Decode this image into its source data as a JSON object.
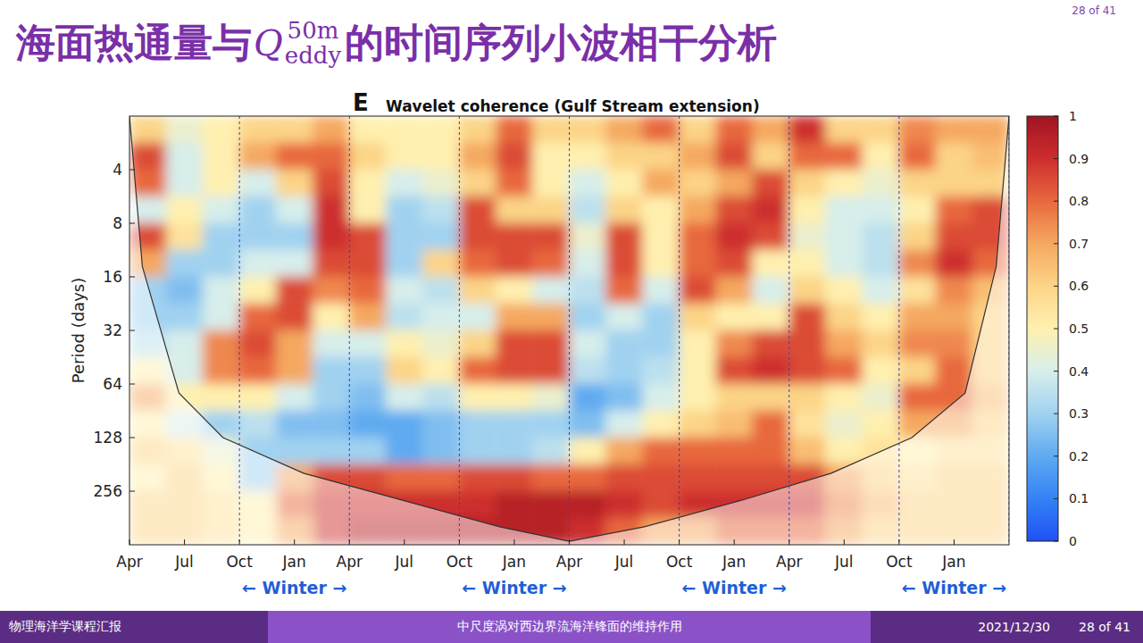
{
  "header": {
    "title_before": "海面热通量与",
    "symbol": "Q",
    "superscript": "50m",
    "subscript": "eddy",
    "title_after": "的时间序列小波相干分析",
    "page": "28 of 41"
  },
  "chart_data": {
    "type": "heatmap",
    "panel_label": "E",
    "title": "Wavelet coherence (Gulf Stream extension)",
    "y_label": "Period (days)",
    "log": "y",
    "xlim": [
      0,
      48
    ],
    "ylim": [
      2,
      512
    ],
    "xticks": [
      {
        "value": 0,
        "label": "Apr"
      },
      {
        "value": 3,
        "label": "Jul"
      },
      {
        "value": 6,
        "label": "Oct"
      },
      {
        "value": 9,
        "label": "Jan"
      },
      {
        "value": 12,
        "label": "Apr"
      },
      {
        "value": 15,
        "label": "Jul"
      },
      {
        "value": 18,
        "label": "Oct"
      },
      {
        "value": 21,
        "label": "Jan"
      },
      {
        "value": 24,
        "label": "Apr"
      },
      {
        "value": 27,
        "label": "Jul"
      },
      {
        "value": 30,
        "label": "Oct"
      },
      {
        "value": 33,
        "label": "Jan"
      },
      {
        "value": 36,
        "label": "Apr"
      },
      {
        "value": 39,
        "label": "Jul"
      },
      {
        "value": 42,
        "label": "Oct"
      },
      {
        "value": 45,
        "label": "Jan"
      }
    ],
    "yticks": [
      4,
      8,
      16,
      32,
      64,
      128,
      256
    ],
    "x_edges": [
      0,
      2,
      4,
      6,
      8,
      10,
      12,
      14,
      16,
      18,
      20,
      22,
      24,
      26,
      28,
      30,
      32,
      34,
      36,
      38,
      40,
      42,
      44,
      46,
      48
    ],
    "y_edges": [
      2,
      2.83,
      4,
      5.66,
      8,
      11.31,
      16,
      22.63,
      32,
      45.25,
      64,
      90.51,
      128,
      181.02,
      256,
      362.04,
      512
    ],
    "values": [
      [
        0.6,
        0.45,
        0.5,
        0.6,
        0.6,
        0.7,
        0.5,
        0.5,
        0.5,
        0.6,
        0.8,
        0.6,
        0.6,
        0.7,
        0.8,
        0.6,
        0.8,
        0.7,
        0.9,
        0.6,
        0.6,
        0.75,
        0.7,
        0.7
      ],
      [
        0.85,
        0.4,
        0.5,
        0.7,
        0.8,
        0.8,
        0.6,
        0.5,
        0.5,
        0.7,
        0.85,
        0.5,
        0.5,
        0.6,
        0.6,
        0.7,
        0.85,
        0.6,
        0.8,
        0.8,
        0.5,
        0.8,
        0.6,
        0.65
      ],
      [
        0.8,
        0.4,
        0.5,
        0.4,
        0.6,
        0.85,
        0.5,
        0.4,
        0.45,
        0.6,
        0.8,
        0.5,
        0.4,
        0.5,
        0.7,
        0.6,
        0.7,
        0.85,
        0.6,
        0.5,
        0.45,
        0.6,
        0.6,
        0.6
      ],
      [
        0.4,
        0.5,
        0.4,
        0.3,
        0.4,
        0.9,
        0.5,
        0.3,
        0.35,
        0.85,
        0.6,
        0.6,
        0.35,
        0.6,
        0.5,
        0.7,
        0.85,
        0.9,
        0.5,
        0.4,
        0.4,
        0.5,
        0.8,
        0.85
      ],
      [
        0.85,
        0.55,
        0.3,
        0.3,
        0.3,
        0.9,
        0.85,
        0.3,
        0.3,
        0.85,
        0.85,
        0.85,
        0.45,
        0.85,
        0.5,
        0.8,
        0.9,
        0.85,
        0.45,
        0.4,
        0.35,
        0.6,
        0.85,
        0.85
      ],
      [
        0.7,
        0.3,
        0.3,
        0.4,
        0.4,
        0.85,
        0.85,
        0.3,
        0.6,
        0.8,
        0.85,
        0.8,
        0.4,
        0.85,
        0.5,
        0.8,
        0.85,
        0.5,
        0.5,
        0.4,
        0.35,
        0.75,
        0.9,
        0.8
      ],
      [
        0.3,
        0.25,
        0.4,
        0.5,
        0.85,
        0.75,
        0.8,
        0.4,
        0.35,
        0.6,
        0.5,
        0.4,
        0.35,
        0.8,
        0.4,
        0.85,
        0.7,
        0.4,
        0.6,
        0.5,
        0.4,
        0.55,
        0.75,
        0.65
      ],
      [
        0.3,
        0.3,
        0.4,
        0.8,
        0.85,
        0.5,
        0.7,
        0.35,
        0.4,
        0.4,
        0.7,
        0.7,
        0.3,
        0.4,
        0.3,
        0.6,
        0.5,
        0.5,
        0.85,
        0.6,
        0.5,
        0.7,
        0.7,
        0.6
      ],
      [
        0.35,
        0.4,
        0.75,
        0.85,
        0.7,
        0.4,
        0.4,
        0.5,
        0.45,
        0.6,
        0.85,
        0.85,
        0.4,
        0.3,
        0.3,
        0.5,
        0.75,
        0.85,
        0.85,
        0.7,
        0.6,
        0.75,
        0.75,
        0.6
      ],
      [
        0.5,
        0.4,
        0.75,
        0.8,
        0.7,
        0.3,
        0.3,
        0.6,
        0.5,
        0.8,
        0.85,
        0.85,
        0.35,
        0.3,
        0.35,
        0.5,
        0.85,
        0.9,
        0.85,
        0.8,
        0.5,
        0.6,
        0.8,
        0.6
      ],
      [
        0.7,
        0.5,
        0.5,
        0.5,
        0.4,
        0.3,
        0.25,
        0.4,
        0.35,
        0.5,
        0.5,
        0.45,
        0.2,
        0.25,
        0.4,
        0.5,
        0.6,
        0.6,
        0.6,
        0.5,
        0.45,
        0.8,
        0.8,
        0.65
      ],
      [
        0.5,
        0.4,
        0.3,
        0.35,
        0.25,
        0.25,
        0.2,
        0.2,
        0.25,
        0.3,
        0.3,
        0.3,
        0.25,
        0.4,
        0.5,
        0.6,
        0.65,
        0.8,
        0.55,
        0.45,
        0.5,
        0.7,
        0.7,
        0.6
      ],
      [
        0.6,
        0.55,
        0.45,
        0.3,
        0.3,
        0.3,
        0.3,
        0.2,
        0.25,
        0.3,
        0.3,
        0.35,
        0.5,
        0.7,
        0.8,
        0.8,
        0.8,
        0.8,
        0.65,
        0.5,
        0.55,
        0.5,
        0.55,
        0.55
      ],
      [
        0.5,
        0.6,
        0.5,
        0.3,
        0.7,
        0.85,
        0.85,
        0.8,
        0.8,
        0.85,
        0.85,
        0.8,
        0.8,
        0.85,
        0.85,
        0.85,
        0.85,
        0.85,
        0.85,
        0.7,
        0.6,
        0.55,
        0.6,
        0.6
      ],
      [
        0.6,
        0.6,
        0.55,
        0.5,
        0.8,
        0.9,
        0.9,
        0.9,
        0.9,
        0.9,
        0.95,
        0.95,
        0.95,
        0.9,
        0.85,
        0.9,
        0.9,
        0.9,
        0.9,
        0.75,
        0.65,
        0.6,
        0.6,
        0.6
      ],
      [
        0.6,
        0.6,
        0.55,
        0.5,
        0.7,
        0.9,
        0.95,
        0.95,
        0.95,
        0.95,
        0.95,
        0.95,
        0.9,
        0.8,
        0.7,
        0.7,
        0.8,
        0.8,
        0.8,
        0.7,
        0.6,
        0.6,
        0.6,
        0.6
      ]
    ],
    "colorbar": {
      "range": [
        0,
        1
      ],
      "ticks": [
        0,
        0.1,
        0.2,
        0.3,
        0.4,
        0.5,
        0.6,
        0.7,
        0.8,
        0.9,
        1
      ]
    },
    "cone_of_influence": {
      "x": [
        0,
        0.7,
        2.7,
        5.1,
        9.5,
        14.9,
        20.2,
        24,
        28.1,
        33.4,
        38.3,
        42.7,
        45.6,
        47.3,
        48
      ],
      "values": [
        2,
        14,
        72,
        128,
        203,
        288,
        406,
        490,
        406,
        288,
        203,
        128,
        72,
        14,
        2
      ]
    },
    "winters": [
      {
        "start": 6,
        "end": 12,
        "label": "← Winter →"
      },
      {
        "start": 18,
        "end": 24,
        "label": "← Winter →"
      },
      {
        "start": 30,
        "end": 36,
        "label": "← Winter →"
      },
      {
        "start": 42,
        "end": 48,
        "label": "← Winter →"
      }
    ]
  },
  "footer": {
    "left": "物理海洋学课程汇报",
    "center": "中尺度涡对西边界流海洋锋面的维持作用",
    "date": "2021/12/30",
    "page": "28 of 41"
  }
}
